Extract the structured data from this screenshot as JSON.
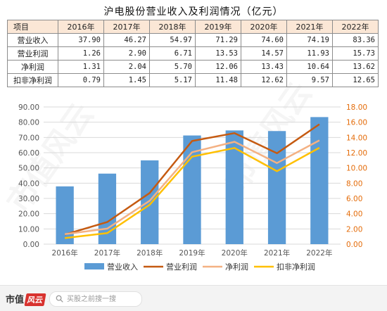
{
  "chart_data": {
    "type": "bar",
    "title": "沪电股份营业收入及利润情况（亿元）",
    "table": {
      "header": [
        "项目",
        "2016年",
        "2017年",
        "2018年",
        "2019年",
        "2020年",
        "2021年",
        "2022年"
      ],
      "rows": [
        {
          "label": "营业收入",
          "values": [
            "37.90",
            "46.27",
            "54.97",
            "71.29",
            "74.60",
            "74.19",
            "83.36"
          ]
        },
        {
          "label": "营业利润",
          "values": [
            "1.26",
            "2.90",
            "6.71",
            "13.53",
            "14.57",
            "11.93",
            "15.73"
          ]
        },
        {
          "label": "净利润",
          "values": [
            "1.31",
            "2.04",
            "5.70",
            "12.06",
            "13.43",
            "10.64",
            "13.62"
          ]
        },
        {
          "label": "扣非净利润",
          "values": [
            "0.79",
            "1.45",
            "5.17",
            "11.48",
            "12.62",
            "9.57",
            "12.65"
          ]
        }
      ]
    },
    "categories": [
      "2016年",
      "2017年",
      "2018年",
      "2019年",
      "2020年",
      "2021年",
      "2022年"
    ],
    "series": [
      {
        "name": "营业收入",
        "type": "bar",
        "axis": "left",
        "color": "#5b9bd5",
        "values": [
          37.9,
          46.27,
          54.97,
          71.29,
          74.6,
          74.19,
          83.36
        ]
      },
      {
        "name": "营业利润",
        "type": "line",
        "axis": "right",
        "color": "#c55a11",
        "values": [
          1.26,
          2.9,
          6.71,
          13.53,
          14.57,
          11.93,
          15.73
        ]
      },
      {
        "name": "净利润",
        "type": "line",
        "axis": "right",
        "color": "#f4b183",
        "values": [
          1.31,
          2.04,
          5.7,
          12.06,
          13.43,
          10.64,
          13.62
        ]
      },
      {
        "name": "扣非净利润",
        "type": "line",
        "axis": "right",
        "color": "#ffc000",
        "values": [
          0.79,
          1.45,
          5.17,
          11.48,
          12.62,
          9.57,
          12.65
        ]
      }
    ],
    "y_left": {
      "min": 0,
      "max": 90,
      "step": 10,
      "decimals": 2,
      "color": "#555555"
    },
    "y_right": {
      "min": 0,
      "max": 18,
      "step": 2,
      "decimals": 2,
      "color": "#e46c0a"
    },
    "grid": true,
    "legend_position": "bottom"
  },
  "footer": {
    "logo_text": "市值",
    "logo_tag": "风云",
    "search_placeholder": "买股之前搜一搜"
  },
  "watermark": {
    "text": "市值风云"
  }
}
